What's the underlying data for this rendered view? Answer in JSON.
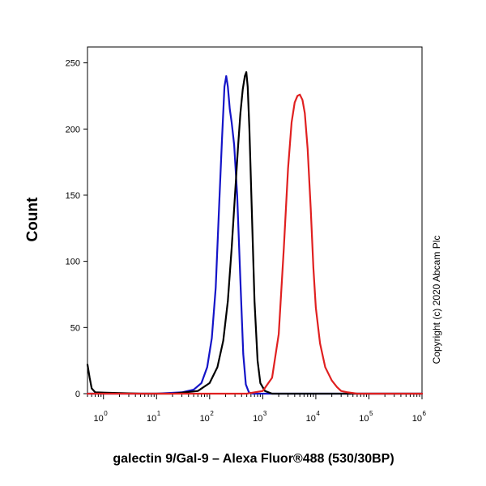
{
  "chart_data": {
    "type": "line",
    "xlabel": "galectin 9/Gal-9 – Alexa Fluor®488 (530/30BP)",
    "ylabel": "Count",
    "x_scale": "log",
    "xlim": [
      0.5,
      1000000
    ],
    "ylim": [
      0,
      262
    ],
    "y_ticks": [
      0,
      50,
      100,
      150,
      200,
      250
    ],
    "x_ticks": [
      {
        "base": "10",
        "exp": "0",
        "value": 1
      },
      {
        "base": "10",
        "exp": "1",
        "value": 10
      },
      {
        "base": "10",
        "exp": "2",
        "value": 100
      },
      {
        "base": "10",
        "exp": "3",
        "value": 1000
      },
      {
        "base": "10",
        "exp": "4",
        "value": 10000
      },
      {
        "base": "10",
        "exp": "5",
        "value": 100000
      },
      {
        "base": "10",
        "exp": "6",
        "value": 1000000
      }
    ],
    "annotation": "Copyright (c) 2020 Abcam Plc",
    "grid": false,
    "series": [
      {
        "color": "#1414c8",
        "x": [
          0.5,
          10,
          30,
          50,
          70,
          90,
          110,
          130,
          150,
          170,
          190,
          205,
          220,
          240,
          260,
          290,
          330,
          380,
          430,
          480,
          550,
          650,
          800,
          1000000
        ],
        "y": [
          0,
          0,
          1,
          3,
          8,
          20,
          42,
          80,
          140,
          190,
          232,
          240,
          232,
          215,
          205,
          188,
          150,
          85,
          30,
          7,
          1,
          0,
          0,
          0
        ]
      },
      {
        "color": "#000000",
        "x": [
          0.5,
          0.55,
          0.6,
          0.7,
          5,
          20,
          60,
          100,
          140,
          180,
          220,
          260,
          300,
          340,
          380,
          420,
          460,
          490,
          520,
          560,
          620,
          700,
          800,
          900,
          1100,
          1500,
          1000000
        ],
        "y": [
          22,
          12,
          4,
          1,
          0,
          0,
          2,
          8,
          20,
          40,
          70,
          110,
          150,
          185,
          212,
          230,
          240,
          243,
          232,
          200,
          140,
          70,
          25,
          8,
          2,
          0,
          0
        ]
      },
      {
        "color": "#e02020",
        "x": [
          0.5,
          500,
          1000,
          1500,
          2000,
          2500,
          3000,
          3500,
          4000,
          4500,
          5000,
          5600,
          6200,
          7000,
          8000,
          9000,
          10000,
          12000,
          15000,
          20000,
          25000,
          30000,
          40000,
          60000,
          1000000
        ],
        "y": [
          0,
          0,
          2,
          12,
          45,
          110,
          170,
          205,
          220,
          225,
          226,
          222,
          212,
          185,
          140,
          95,
          65,
          38,
          20,
          10,
          5,
          2,
          1,
          0,
          0
        ]
      }
    ]
  }
}
